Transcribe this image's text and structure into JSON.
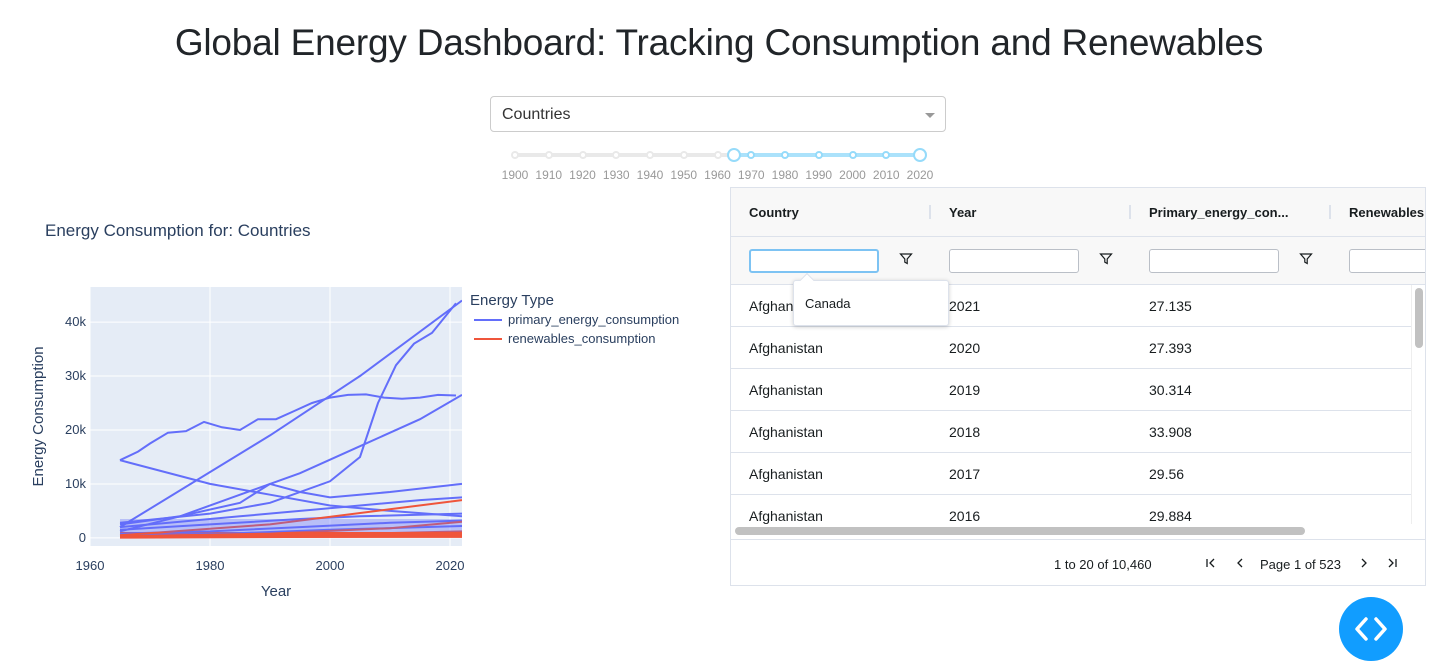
{
  "page": {
    "title": "Global Energy Dashboard: Tracking Consumption and Renewables"
  },
  "dropdown": {
    "value": "Countries"
  },
  "slider": {
    "marks": [
      "1900",
      "1910",
      "1920",
      "1930",
      "1940",
      "1950",
      "1960",
      "1970",
      "1980",
      "1990",
      "2000",
      "2010",
      "2020"
    ],
    "range": [
      1965,
      2020
    ]
  },
  "chart_title": "Energy Consumption for: Countries",
  "chart_data": {
    "type": "line",
    "xlabel": "Year",
    "ylabel": "Energy Consumption",
    "xlim": [
      1960,
      2022
    ],
    "ylim": [
      -1500,
      46500
    ],
    "xticks": [
      1960,
      1980,
      2000,
      2020
    ],
    "yticks": [
      0,
      10000,
      20000,
      30000,
      40000
    ],
    "ytick_labels": [
      "0",
      "10k",
      "20k",
      "30k",
      "40k"
    ],
    "legend_title": "Energy Type",
    "legend_position": "right",
    "grid": true,
    "series": [
      {
        "name": "primary_energy_consumption",
        "color": "#636efa",
        "lines": [
          {
            "x": [
              1965,
              1968,
              1970,
              1973,
              1976,
              1979,
              1982,
              1985,
              1988,
              1991,
              1994,
              1997,
              2000,
              2003,
              2006,
              2009,
              2012,
              2015,
              2018,
              2021
            ],
            "y": [
              14400,
              16000,
              17500,
              19500,
              19800,
              21500,
              20500,
              20000,
              22000,
              22000,
              23500,
              25000,
              26000,
              26500,
              26600,
              26000,
              25800,
              26000,
              26500,
              26400
            ]
          },
          {
            "x": [
              1965,
              1990,
              2005,
              2022
            ],
            "y": [
              2000,
              19000,
              30000,
              44000
            ]
          },
          {
            "x": [
              1965,
              1980,
              1990,
              2000,
              2005,
              2008,
              2011,
              2014,
              2017,
              2021
            ],
            "y": [
              2800,
              4500,
              6500,
              10500,
              15000,
              25000,
              32000,
              36000,
              38000,
              43500
            ]
          },
          {
            "x": [
              1965,
              1975,
              1985,
              1995,
              2005,
              2015,
              2022
            ],
            "y": [
              1200,
              4000,
              8000,
              12000,
              17000,
              22000,
              26500
            ]
          },
          {
            "x": [
              1965,
              1980,
              1990,
              2000,
              2010,
              2022
            ],
            "y": [
              14400,
              10000,
              8000,
              6000,
              5000,
              4000
            ]
          },
          {
            "x": [
              1965,
              1975,
              1985,
              1990,
              1995,
              2000,
              2010,
              2022
            ],
            "y": [
              2500,
              4000,
              6500,
              10000,
              8500,
              7500,
              8500,
              10000
            ]
          },
          {
            "x": [
              1965,
              1975,
              1985,
              1995,
              2005,
              2015,
              2022
            ],
            "y": [
              2000,
              3000,
              4000,
              5000,
              6000,
              7000,
              7500
            ]
          },
          {
            "x": [
              1965,
              1980,
              1995,
              2005,
              2022
            ],
            "y": [
              1500,
              2500,
              3500,
              4000,
              4500
            ]
          },
          {
            "x": [
              1965,
              1980,
              1995,
              2010,
              2022
            ],
            "y": [
              800,
              1200,
              2000,
              2800,
              3200
            ]
          },
          {
            "x": [
              1965,
              1985,
              2000,
              2022
            ],
            "y": [
              400,
              900,
              1500,
              2200
            ]
          }
        ]
      },
      {
        "name": "renewables_consumption",
        "color": "#ef553b",
        "lines": [
          {
            "x": [
              1965,
              1990,
              2022
            ],
            "y": [
              500,
              2500,
              7000
            ]
          },
          {
            "x": [
              1965,
              1990,
              2010,
              2022
            ],
            "y": [
              300,
              800,
              1800,
              3000
            ]
          },
          {
            "x": [
              1965,
              1990,
              2022
            ],
            "y": [
              150,
              400,
              1200
            ]
          },
          {
            "x": [
              1965,
              2022
            ],
            "y": [
              50,
              300
            ]
          }
        ]
      }
    ]
  },
  "grid": {
    "columns": [
      "Country",
      "Year",
      "Primary_energy_con...",
      "Renewables"
    ],
    "rows": [
      [
        "Afghanistan",
        "2021",
        "27.135"
      ],
      [
        "Afghanistan",
        "2020",
        "27.393"
      ],
      [
        "Afghanistan",
        "2019",
        "30.314"
      ],
      [
        "Afghanistan",
        "2018",
        "33.908"
      ],
      [
        "Afghanistan",
        "2017",
        "29.56"
      ],
      [
        "Afghanistan",
        "2016",
        "29.884"
      ]
    ],
    "filter_popup_option": "Canada",
    "pager": {
      "summary": "1 to 20 of 10,460",
      "page_label": "Page 1 of 523"
    }
  }
}
